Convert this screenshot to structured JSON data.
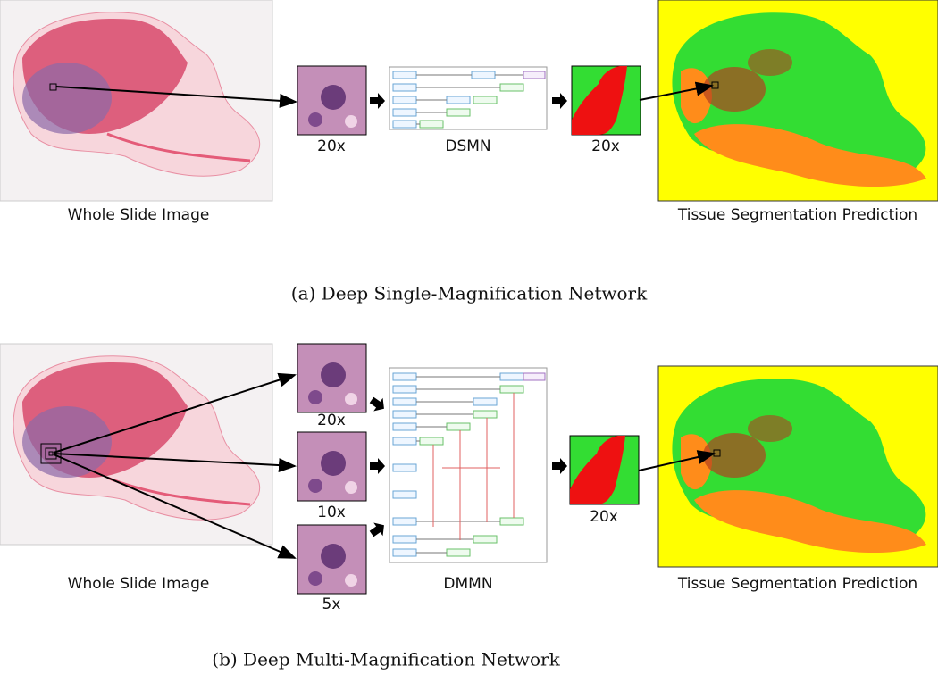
{
  "panel_a": {
    "wsi_label": "Whole Slide Image",
    "input_label": "20x",
    "network_label": "DSMN",
    "output_patch_label": "20x",
    "prediction_label": "Tissue Segmentation Prediction",
    "caption": "(a) Deep Single-Magnification Network"
  },
  "panel_b": {
    "wsi_label": "Whole Slide Image",
    "input_labels": [
      "20x",
      "10x",
      "5x"
    ],
    "network_label": "DMMN",
    "output_patch_label": "20x",
    "prediction_label": "Tissue Segmentation Prediction",
    "caption": "(b) Deep Multi-Magnification Network"
  }
}
